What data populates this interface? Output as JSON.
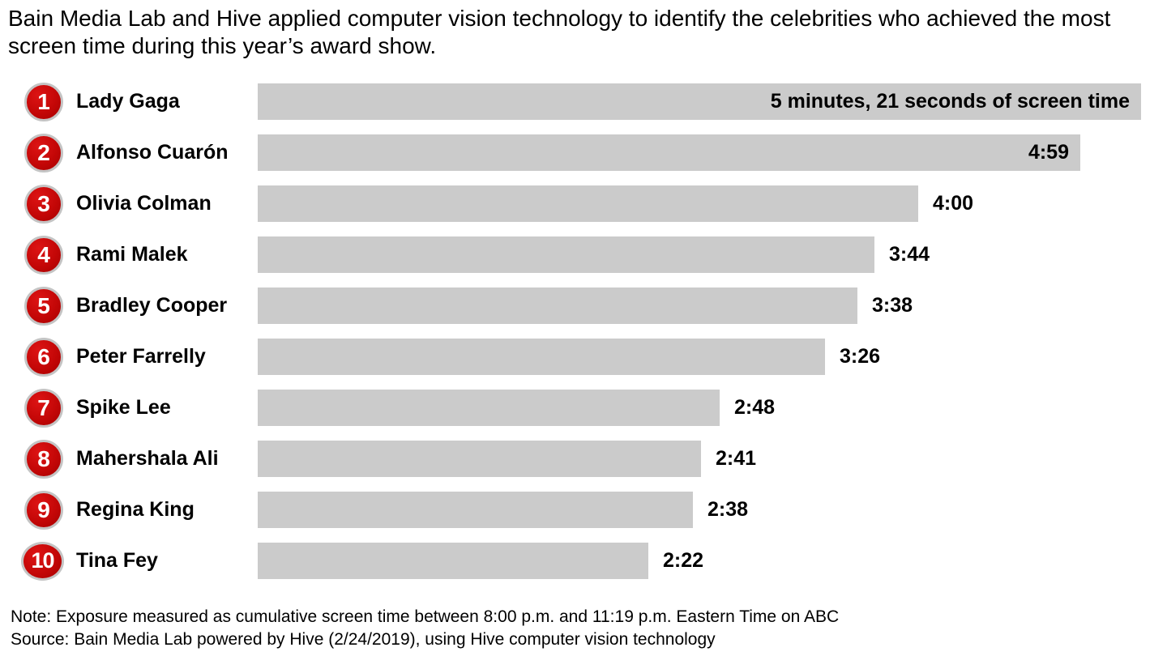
{
  "header": {
    "title": "Bain Media Lab and Hive applied computer vision technology to identify the celebrities who achieved the most\nscreen time during this year’s award show."
  },
  "chart_data": {
    "type": "bar",
    "orientation": "horizontal",
    "value_unit": "seconds of screen time",
    "xlim_seconds": [
      0,
      321
    ],
    "bar_color": "#cbcbcb",
    "rank_badge_color": "#c40707",
    "rank_badge_ring_color": "#c4c4c4",
    "rows": [
      {
        "rank": "1",
        "name": "Lady Gaga",
        "seconds": 321,
        "time_label": "5 minutes, 21 seconds of screen time",
        "label_position": "inside"
      },
      {
        "rank": "2",
        "name": "Alfonso Cuarón",
        "seconds": 299,
        "time_label": "4:59",
        "label_position": "inside"
      },
      {
        "rank": "3",
        "name": "Olivia Colman",
        "seconds": 240,
        "time_label": "4:00",
        "label_position": "outside"
      },
      {
        "rank": "4",
        "name": "Rami Malek",
        "seconds": 224,
        "time_label": "3:44",
        "label_position": "outside"
      },
      {
        "rank": "5",
        "name": "Bradley Cooper",
        "seconds": 218,
        "time_label": "3:38",
        "label_position": "outside"
      },
      {
        "rank": "6",
        "name": "Peter Farrelly",
        "seconds": 206,
        "time_label": "3:26",
        "label_position": "outside"
      },
      {
        "rank": "7",
        "name": "Spike Lee",
        "seconds": 168,
        "time_label": "2:48",
        "label_position": "outside"
      },
      {
        "rank": "8",
        "name": "Mahershala Ali",
        "seconds": 161,
        "time_label": "2:41",
        "label_position": "outside"
      },
      {
        "rank": "9",
        "name": "Regina King",
        "seconds": 158,
        "time_label": "2:38",
        "label_position": "outside"
      },
      {
        "rank": "10",
        "name": "Tina Fey",
        "seconds": 142,
        "time_label": "2:22",
        "label_position": "outside"
      }
    ]
  },
  "footer": {
    "note": "Note: Exposure measured as cumulative screen time between 8:00 p.m. and 11:19 p.m. Eastern Time on ABC",
    "source": "Source: Bain Media Lab powered by Hive (2/24/2019), using Hive computer vision technology"
  }
}
